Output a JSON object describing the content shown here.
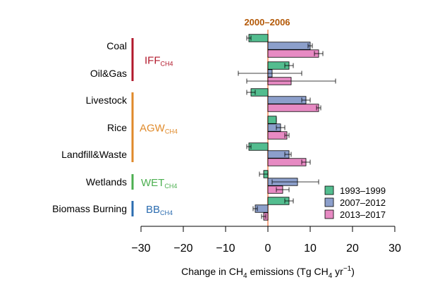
{
  "chart_data": {
    "type": "bar",
    "orientation": "horizontal",
    "title": "",
    "ref_label": "2000–2006",
    "xlabel": {
      "prefix": "Change in CH",
      "prefix_sub": "4",
      "middle": " emissions (Tg CH",
      "middle_sub": "4",
      "unit": " yr",
      "unit_sup": "−1",
      "suffix": ")"
    },
    "xlim": [
      -30,
      30
    ],
    "xticks": [
      -30,
      -20,
      -10,
      0,
      10,
      20,
      30
    ],
    "xtick_labels": [
      "−30",
      "−20",
      "−10",
      "0",
      "10",
      "20",
      "30"
    ],
    "categories": [
      "Coal",
      "Oil&Gas",
      "Livestock",
      "Rice",
      "Landfill&Waste",
      "Wetlands",
      "Biomass Burning"
    ],
    "groups": [
      {
        "name": "IFF",
        "sub": "CH4",
        "color": "#b2182b",
        "members": [
          0,
          1
        ]
      },
      {
        "name": "AGW",
        "sub": "CH4",
        "color": "#e08a2a",
        "members": [
          2,
          3,
          4
        ]
      },
      {
        "name": "WET",
        "sub": "CH4",
        "color": "#4caf50",
        "members": [
          5
        ]
      },
      {
        "name": "BB",
        "sub": "CH4",
        "color": "#2b6cb0",
        "members": [
          6
        ]
      }
    ],
    "series": [
      {
        "name": "1993–1999",
        "color": "#53bd8f",
        "values": [
          -4.5,
          5.0,
          -4.0,
          2.0,
          -4.5,
          -1.0,
          5.0
        ],
        "err_low": [
          -5.0,
          4.0,
          -5.0,
          2.0,
          -5.0,
          -2.0,
          4.0
        ],
        "err_high": [
          -4.0,
          6.0,
          -3.0,
          2.0,
          -4.0,
          0.0,
          6.0
        ]
      },
      {
        "name": "2007–2012",
        "color": "#8c9fcb",
        "values": [
          10.0,
          1.0,
          9.0,
          3.0,
          5.0,
          7.0,
          -3.0
        ],
        "err_low": [
          9.5,
          -7.0,
          8.0,
          2.0,
          4.0,
          1.0,
          -3.5
        ],
        "err_high": [
          10.5,
          8.0,
          10.0,
          4.0,
          5.5,
          12.0,
          -2.5
        ]
      },
      {
        "name": "2013–2017",
        "color": "#e78ac3",
        "values": [
          12.0,
          5.5,
          12.0,
          4.5,
          9.0,
          3.5,
          -1.0
        ],
        "err_low": [
          11.0,
          -5.0,
          11.5,
          4.0,
          8.0,
          2.0,
          -1.5
        ],
        "err_high": [
          13.0,
          16.0,
          12.5,
          5.0,
          10.0,
          5.0,
          -0.5
        ]
      }
    ],
    "legend": {
      "position": "bottom-right"
    },
    "reference_line": {
      "x": 0,
      "color": "#f4a582"
    },
    "grid": false
  }
}
